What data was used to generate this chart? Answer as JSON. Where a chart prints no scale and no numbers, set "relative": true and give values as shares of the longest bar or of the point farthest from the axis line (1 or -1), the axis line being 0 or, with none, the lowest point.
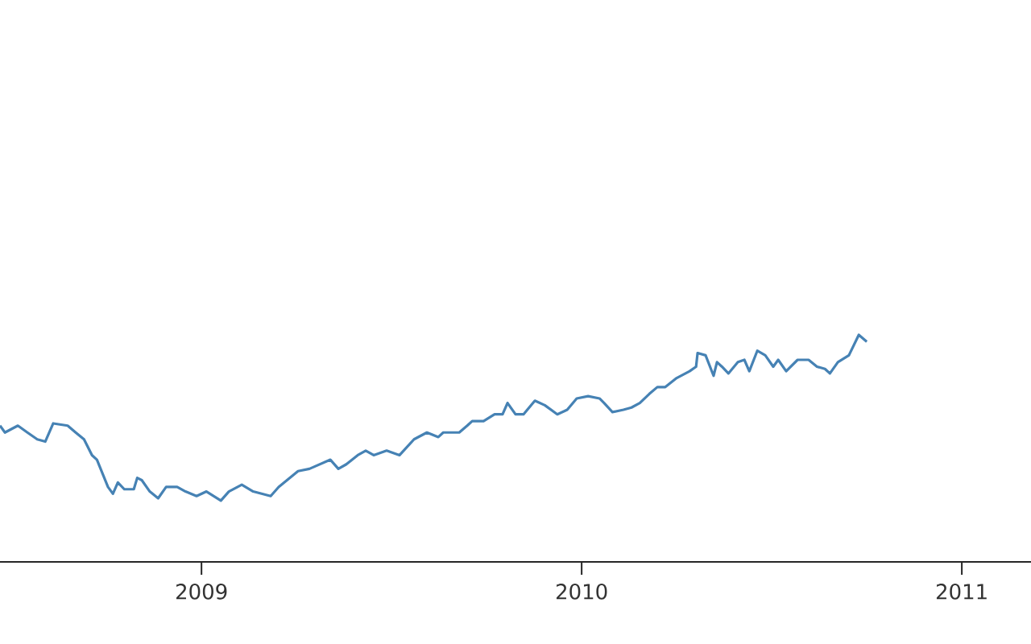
{
  "chart_data": {
    "type": "line",
    "relative": true,
    "xlim": [
      2008.47,
      2011.182
    ],
    "xticks": [
      2009,
      2010,
      2011
    ],
    "x": [
      2008.47,
      2008.483,
      2008.517,
      2008.542,
      2008.568,
      2008.589,
      2008.61,
      2008.648,
      2008.669,
      2008.691,
      2008.712,
      2008.725,
      2008.737,
      2008.754,
      2008.767,
      2008.78,
      2008.797,
      2008.822,
      2008.831,
      2008.843,
      2008.864,
      2008.886,
      2008.907,
      2008.936,
      2008.958,
      2008.987,
      2009.013,
      2009.051,
      2009.072,
      2009.106,
      2009.136,
      2009.182,
      2009.203,
      2009.254,
      2009.284,
      2009.339,
      2009.36,
      2009.381,
      2009.411,
      2009.432,
      2009.453,
      2009.487,
      2009.521,
      2009.559,
      2009.593,
      2009.623,
      2009.636,
      2009.665,
      2009.678,
      2009.699,
      2009.712,
      2009.742,
      2009.771,
      2009.792,
      2009.805,
      2009.826,
      2009.847,
      2009.877,
      2009.903,
      2009.936,
      2009.962,
      2009.987,
      2010.017,
      2010.047,
      2010.059,
      2010.081,
      2010.11,
      2010.131,
      2010.153,
      2010.178,
      2010.199,
      2010.22,
      2010.25,
      2010.284,
      2010.301,
      2010.305,
      2010.326,
      2010.347,
      2010.356,
      2010.369,
      2010.386,
      2010.411,
      2010.428,
      2010.441,
      2010.462,
      2010.483,
      2010.504,
      2010.517,
      2010.538,
      2010.568,
      2010.597,
      2010.619,
      2010.64,
      2010.653,
      2010.674,
      2010.703,
      2010.729,
      2010.75
    ],
    "series": [
      {
        "color": "#4682b4",
        "values": [
          0.6,
          0.57,
          0.6,
          0.57,
          0.54,
          0.53,
          0.61,
          0.6,
          0.57,
          0.54,
          0.47,
          0.45,
          0.4,
          0.33,
          0.3,
          0.35,
          0.32,
          0.32,
          0.37,
          0.36,
          0.31,
          0.28,
          0.33,
          0.33,
          0.31,
          0.29,
          0.31,
          0.27,
          0.31,
          0.34,
          0.31,
          0.29,
          0.33,
          0.4,
          0.41,
          0.45,
          0.41,
          0.43,
          0.47,
          0.49,
          0.47,
          0.49,
          0.47,
          0.54,
          0.57,
          0.55,
          0.57,
          0.57,
          0.57,
          0.6,
          0.62,
          0.62,
          0.65,
          0.65,
          0.7,
          0.65,
          0.65,
          0.71,
          0.69,
          0.65,
          0.67,
          0.72,
          0.73,
          0.72,
          0.7,
          0.66,
          0.67,
          0.68,
          0.7,
          0.74,
          0.77,
          0.77,
          0.81,
          0.84,
          0.86,
          0.92,
          0.91,
          0.82,
          0.88,
          0.86,
          0.83,
          0.88,
          0.89,
          0.84,
          0.93,
          0.91,
          0.86,
          0.89,
          0.84,
          0.89,
          0.89,
          0.86,
          0.85,
          0.83,
          0.88,
          0.91,
          1,
          0.97
        ]
      }
    ]
  }
}
